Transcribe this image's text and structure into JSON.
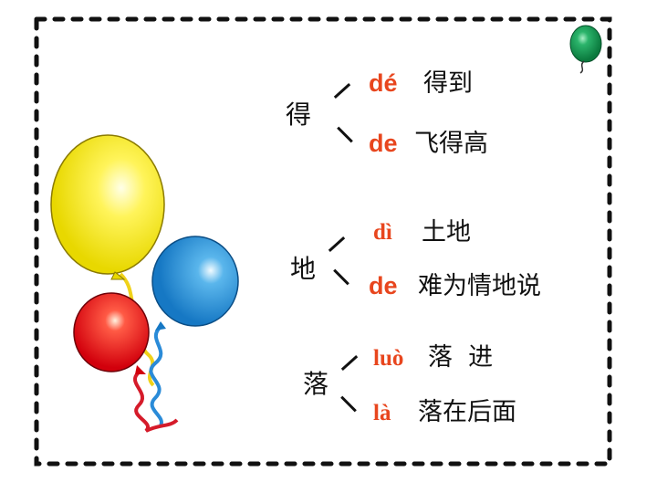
{
  "entries": [
    {
      "character": "得",
      "readings": [
        {
          "pinyin": "dé",
          "example": "得到"
        },
        {
          "pinyin": "de",
          "example": "飞得高"
        }
      ]
    },
    {
      "character": "地",
      "readings": [
        {
          "pinyin": "dì",
          "example": "土地"
        },
        {
          "pinyin": "de",
          "example": "难为情地说"
        }
      ]
    },
    {
      "character": "落",
      "readings": [
        {
          "pinyin": "luò",
          "example": "落  进"
        },
        {
          "pinyin": "là",
          "example": "落在后面"
        }
      ]
    }
  ],
  "decorations": {
    "balloons": [
      "yellow",
      "blue",
      "red",
      "green"
    ],
    "border": "dashed-black"
  }
}
